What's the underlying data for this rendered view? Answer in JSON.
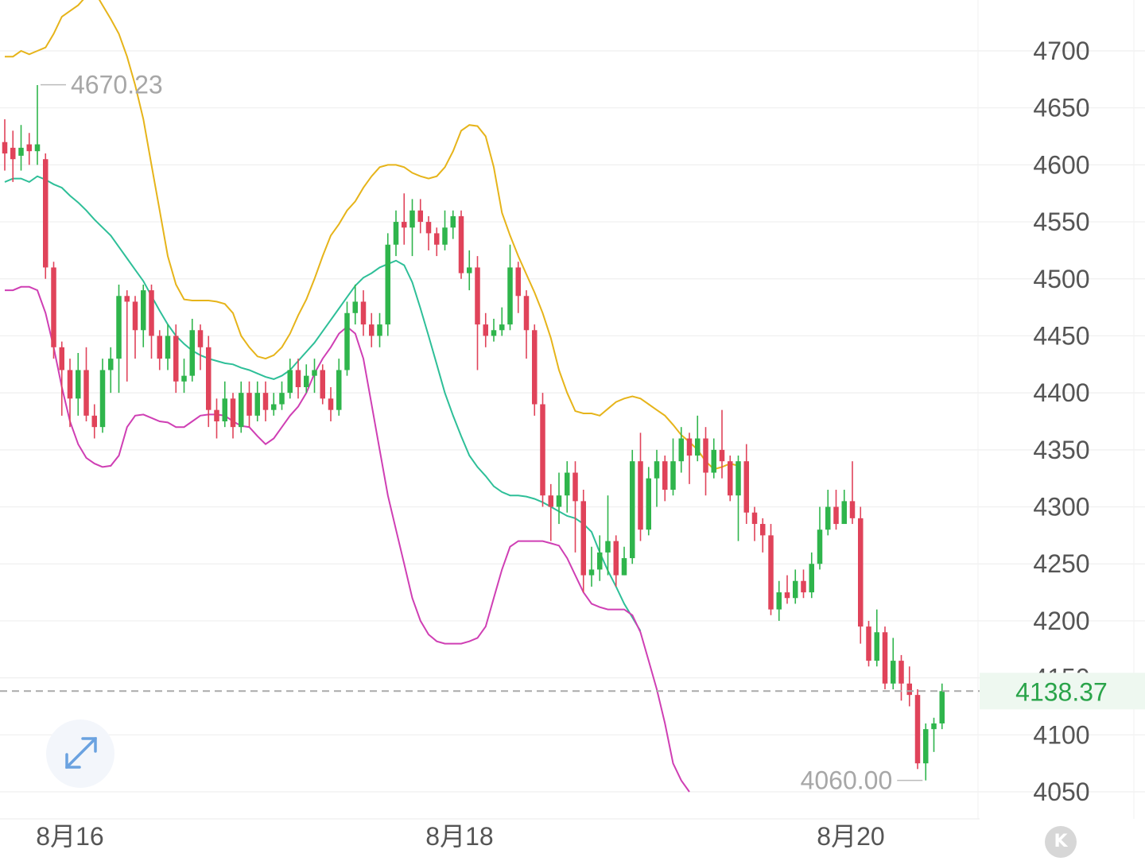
{
  "chart_data": {
    "type": "candlestick",
    "x_tick_labels": [
      "8月16",
      "8月18",
      "8月20"
    ],
    "y_ticks": [
      4050,
      4100,
      4150,
      4200,
      4250,
      4300,
      4350,
      4400,
      4450,
      4500,
      4550,
      4600,
      4650,
      4700
    ],
    "ylim": [
      4027,
      4740
    ],
    "grid": true,
    "current_price": "4138.37",
    "high_label": "4670.23",
    "low_label": "4060.00",
    "colors": {
      "up": "#2fb54c",
      "down": "#e0435a",
      "upper_band": "#e6b41a",
      "middle_band": "#2ebf98",
      "lower_band": "#cf3fb4",
      "current_price": "#2aa44a"
    },
    "candles": [
      [
        4620,
        4610,
        4640,
        4595
      ],
      [
        4615,
        4605,
        4630,
        4585
      ],
      [
        4608,
        4615,
        4635,
        4595
      ],
      [
        4618,
        4612,
        4628,
        4600
      ],
      [
        4612,
        4618,
        4670,
        4600
      ],
      [
        4605,
        4510,
        4610,
        4500
      ],
      [
        4510,
        4440,
        4515,
        4430
      ],
      [
        4440,
        4420,
        4445,
        4380
      ],
      [
        4420,
        4395,
        4430,
        4370
      ],
      [
        4395,
        4420,
        4435,
        4380
      ],
      [
        4420,
        4380,
        4440,
        4375
      ],
      [
        4380,
        4370,
        4390,
        4360
      ],
      [
        4370,
        4420,
        4430,
        4365
      ],
      [
        4420,
        4430,
        4440,
        4400
      ],
      [
        4430,
        4485,
        4495,
        4400
      ],
      [
        4485,
        4480,
        4490,
        4410
      ],
      [
        4480,
        4455,
        4485,
        4430
      ],
      [
        4455,
        4490,
        4495,
        4440
      ],
      [
        4490,
        4450,
        4495,
        4430
      ],
      [
        4450,
        4430,
        4455,
        4420
      ],
      [
        4430,
        4450,
        4460,
        4420
      ],
      [
        4450,
        4410,
        4460,
        4400
      ],
      [
        4410,
        4415,
        4430,
        4400
      ],
      [
        4415,
        4455,
        4465,
        4410
      ],
      [
        4455,
        4440,
        4460,
        4420
      ],
      [
        4440,
        4385,
        4450,
        4370
      ],
      [
        4385,
        4375,
        4395,
        4360
      ],
      [
        4375,
        4395,
        4410,
        4370
      ],
      [
        4395,
        4370,
        4400,
        4360
      ],
      [
        4370,
        4400,
        4410,
        4365
      ],
      [
        4400,
        4380,
        4410,
        4370
      ],
      [
        4380,
        4400,
        4410,
        4375
      ],
      [
        4400,
        4385,
        4410,
        4375
      ],
      [
        4385,
        4390,
        4400,
        4380
      ],
      [
        4390,
        4400,
        4410,
        4385
      ],
      [
        4400,
        4420,
        4430,
        4395
      ],
      [
        4420,
        4405,
        4430,
        4395
      ],
      [
        4405,
        4415,
        4425,
        4400
      ],
      [
        4415,
        4420,
        4430,
        4400
      ],
      [
        4420,
        4395,
        4425,
        4390
      ],
      [
        4395,
        4385,
        4405,
        4375
      ],
      [
        4385,
        4420,
        4430,
        4380
      ],
      [
        4420,
        4470,
        4480,
        4415
      ],
      [
        4470,
        4480,
        4495,
        4460
      ],
      [
        4480,
        4460,
        4490,
        4450
      ],
      [
        4460,
        4450,
        4470,
        4440
      ],
      [
        4450,
        4460,
        4470,
        4440
      ],
      [
        4460,
        4530,
        4540,
        4450
      ],
      [
        4530,
        4550,
        4560,
        4520
      ],
      [
        4550,
        4545,
        4575,
        4530
      ],
      [
        4545,
        4560,
        4570,
        4520
      ],
      [
        4560,
        4550,
        4570,
        4540
      ],
      [
        4550,
        4540,
        4555,
        4525
      ],
      [
        4540,
        4530,
        4545,
        4520
      ],
      [
        4530,
        4545,
        4560,
        4525
      ],
      [
        4545,
        4555,
        4560,
        4535
      ],
      [
        4555,
        4505,
        4560,
        4500
      ],
      [
        4505,
        4510,
        4525,
        4490
      ],
      [
        4510,
        4460,
        4520,
        4420
      ],
      [
        4460,
        4450,
        4470,
        4440
      ],
      [
        4450,
        4455,
        4465,
        4445
      ],
      [
        4455,
        4460,
        4475,
        4450
      ],
      [
        4460,
        4510,
        4530,
        4455
      ],
      [
        4510,
        4485,
        4515,
        4470
      ],
      [
        4485,
        4455,
        4490,
        4430
      ],
      [
        4455,
        4390,
        4460,
        4380
      ],
      [
        4390,
        4310,
        4400,
        4300
      ],
      [
        4310,
        4300,
        4320,
        4270
      ],
      [
        4300,
        4310,
        4330,
        4285
      ],
      [
        4310,
        4330,
        4340,
        4295
      ],
      [
        4330,
        4305,
        4340,
        4260
      ],
      [
        4305,
        4240,
        4315,
        4225
      ],
      [
        4240,
        4245,
        4265,
        4230
      ],
      [
        4245,
        4260,
        4275,
        4235
      ],
      [
        4260,
        4270,
        4310,
        4240
      ],
      [
        4270,
        4240,
        4275,
        4230
      ],
      [
        4240,
        4255,
        4265,
        4240
      ],
      [
        4255,
        4340,
        4350,
        4250
      ],
      [
        4340,
        4280,
        4365,
        4270
      ],
      [
        4280,
        4325,
        4335,
        4275
      ],
      [
        4325,
        4340,
        4350,
        4300
      ],
      [
        4340,
        4315,
        4345,
        4305
      ],
      [
        4315,
        4340,
        4360,
        4310
      ],
      [
        4340,
        4360,
        4370,
        4330
      ],
      [
        4360,
        4345,
        4365,
        4320
      ],
      [
        4345,
        4360,
        4380,
        4340
      ],
      [
        4360,
        4330,
        4370,
        4310
      ],
      [
        4330,
        4350,
        4360,
        4325
      ],
      [
        4350,
        4340,
        4385,
        4325
      ],
      [
        4340,
        4310,
        4345,
        4305
      ],
      [
        4310,
        4340,
        4345,
        4270
      ],
      [
        4340,
        4295,
        4355,
        4285
      ],
      [
        4295,
        4285,
        4300,
        4270
      ],
      [
        4285,
        4275,
        4290,
        4260
      ],
      [
        4275,
        4210,
        4285,
        4205
      ],
      [
        4210,
        4225,
        4235,
        4200
      ],
      [
        4225,
        4220,
        4240,
        4215
      ],
      [
        4220,
        4235,
        4245,
        4215
      ],
      [
        4235,
        4225,
        4245,
        4220
      ],
      [
        4225,
        4250,
        4260,
        4220
      ],
      [
        4250,
        4280,
        4300,
        4245
      ],
      [
        4280,
        4300,
        4315,
        4275
      ],
      [
        4300,
        4285,
        4315,
        4280
      ],
      [
        4285,
        4305,
        4315,
        4290
      ],
      [
        4305,
        4290,
        4340,
        4285
      ],
      [
        4290,
        4195,
        4300,
        4180
      ],
      [
        4195,
        4165,
        4200,
        4160
      ],
      [
        4165,
        4190,
        4210,
        4160
      ],
      [
        4190,
        4145,
        4195,
        4140
      ],
      [
        4145,
        4165,
        4185,
        4140
      ],
      [
        4165,
        4145,
        4170,
        4130
      ],
      [
        4145,
        4135,
        4160,
        4125
      ],
      [
        4135,
        4075,
        4140,
        4070
      ],
      [
        4075,
        4105,
        4110,
        4060
      ],
      [
        4105,
        4110,
        4115,
        4085
      ],
      [
        4110,
        4138.37,
        4145,
        4105
      ]
    ],
    "upper_band": [
      4695,
      4695,
      4700,
      4697,
      4700,
      4703,
      4715,
      4730,
      4735,
      4740,
      4748,
      4752,
      4740,
      4728,
      4715,
      4695,
      4670,
      4640,
      4600,
      4560,
      4520,
      4495,
      4482,
      4481,
      4481,
      4481,
      4480,
      4478,
      4470,
      4450,
      4440,
      4432,
      4430,
      4433,
      4440,
      4452,
      4468,
      4482,
      4500,
      4520,
      4538,
      4548,
      4560,
      4568,
      4580,
      4590,
      4598,
      4600,
      4600,
      4598,
      4593,
      4590,
      4588,
      4590,
      4598,
      4612,
      4630,
      4635,
      4634,
      4625,
      4598,
      4558,
      4538,
      4520,
      4504,
      4488,
      4470,
      4448,
      4420,
      4400,
      4384,
      4382,
      4382,
      4380,
      4386,
      4392,
      4395,
      4397,
      4395,
      4390,
      4385,
      4380,
      4372,
      4363,
      4357,
      4350,
      4340,
      4333,
      4335,
      4338,
      4336
    ],
    "middle_band": [
      4585,
      4588,
      4588,
      4585,
      4590,
      4587,
      4583,
      4580,
      4573,
      4567,
      4560,
      4552,
      4545,
      4538,
      4528,
      4518,
      4508,
      4498,
      4485,
      4472,
      4460,
      4450,
      4443,
      4437,
      4433,
      4430,
      4428,
      4426,
      4425,
      4422,
      4420,
      4417,
      4414,
      4412,
      4415,
      4420,
      4428,
      4436,
      4444,
      4454,
      4464,
      4474,
      4484,
      4494,
      4501,
      4505,
      4510,
      4513,
      4516,
      4512,
      4497,
      4474,
      4450,
      4425,
      4400,
      4380,
      4362,
      4345,
      4335,
      4327,
      4318,
      4313,
      4310,
      4310,
      4309,
      4307,
      4304,
      4300,
      4296,
      4292,
      4290,
      4285,
      4278,
      4260,
      4244,
      4230,
      4215,
      4203,
      4191
    ],
    "lower_band": [
      4490,
      4490,
      4493,
      4493,
      4490,
      4470,
      4440,
      4405,
      4375,
      4355,
      4343,
      4338,
      4335,
      4336,
      4345,
      4370,
      4380,
      4381,
      4378,
      4375,
      4374,
      4370,
      4370,
      4375,
      4380,
      4381,
      4381,
      4380,
      4375,
      4371,
      4370,
      4362,
      4355,
      4360,
      4370,
      4380,
      4388,
      4400,
      4417,
      4430,
      4440,
      4452,
      4458,
      4452,
      4430,
      4390,
      4350,
      4310,
      4280,
      4250,
      4220,
      4200,
      4188,
      4182,
      4180,
      4180,
      4180,
      4182,
      4185,
      4195,
      4220,
      4245,
      4265,
      4270,
      4270,
      4270,
      4270,
      4268,
      4266,
      4255,
      4240,
      4225,
      4215,
      4212,
      4210,
      4210,
      4210,
      4205,
      4190,
      4165,
      4140,
      4110,
      4075,
      4060,
      4050
    ]
  }
}
